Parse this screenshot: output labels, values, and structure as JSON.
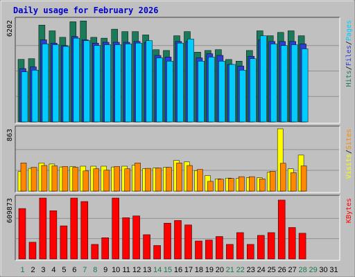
{
  "chart_data": {
    "type": "bar",
    "title": "Daily usage for February 2026",
    "colors": {
      "background": "#c0c0c0",
      "title": "#0000cc",
      "hits": "#1a7a5a",
      "files": "#2b3fd0",
      "pages": "#00ccff",
      "visits": "#ffff00",
      "sites": "#ff8800",
      "kbytes": "#ff0000",
      "weekday_label": "#000000",
      "weekend_label": "#1a7a4a"
    },
    "x_labels": [
      "1",
      "2",
      "3",
      "4",
      "5",
      "6",
      "7",
      "8",
      "9",
      "10",
      "11",
      "12",
      "13",
      "14",
      "15",
      "16",
      "17",
      "18",
      "19",
      "20",
      "21",
      "22",
      "23",
      "24",
      "25",
      "26",
      "27",
      "28",
      "29",
      "30",
      "31"
    ],
    "weekend_days": [
      1,
      7,
      8,
      14,
      15,
      21,
      22,
      28,
      29
    ],
    "panels": [
      {
        "id": "hits-files-pages",
        "ymax_label": "6202",
        "ymax": 6202,
        "right_labels": [
          {
            "text": "Hits",
            "color": "#1a7a5a"
          },
          {
            "text": "Files",
            "color": "#2b3fd0"
          },
          {
            "text": "Pages",
            "color": "#00ccff"
          }
        ],
        "series": [
          {
            "name": "Hits",
            "color": "#1a7a5a",
            "values": [
              3810,
              3850,
              5900,
              5550,
              5150,
              6100,
              6150,
              5150,
              5100,
              5650,
              5500,
              5500,
              5300,
              4400,
              4350,
              5250,
              5500,
              4250,
              4350,
              4400,
              3800,
              3700,
              4350,
              5550,
              5250,
              5450,
              5550,
              5250
            ]
          },
          {
            "name": "Files",
            "color": "#2b3fd0",
            "values": [
              3250,
              3350,
              5000,
              4800,
              4650,
              5200,
              5000,
              4800,
              4850,
              4850,
              4850,
              4900,
              4850,
              4050,
              3950,
              4900,
              4900,
              3900,
              4150,
              4050,
              3500,
              3400,
              4000,
              5000,
              4900,
              4900,
              4900,
              4750
            ]
          },
          {
            "name": "Pages",
            "color": "#00ccff",
            "values": [
              3050,
              3150,
              4750,
              4700,
              4600,
              5100,
              4950,
              4650,
              4700,
              4700,
              4750,
              4800,
              4950,
              3900,
              3700,
              4800,
              5050,
              3700,
              3950,
              3700,
              3500,
              3150,
              3850,
              5250,
              4750,
              4650,
              4700,
              4450
            ]
          }
        ]
      },
      {
        "id": "visits-sites",
        "ymax_label": "863",
        "ymax": 863,
        "right_labels": [
          {
            "text": "Visits",
            "color": "#ffff00"
          },
          {
            "text": "Sites",
            "color": "#ff8800"
          }
        ],
        "series": [
          {
            "name": "Visits",
            "color": "#ffff00",
            "values": [
              270,
              315,
              390,
              375,
              335,
              340,
              345,
              345,
              345,
              335,
              345,
              360,
              310,
              320,
              330,
              425,
              405,
              285,
              215,
              170,
              180,
              175,
              185,
              185,
              260,
              863,
              310,
              500
            ]
          },
          {
            "name": "Sites",
            "color": "#ff8800",
            "values": [
              390,
              330,
              355,
              350,
              340,
              330,
              280,
              310,
              290,
              340,
              310,
              390,
              315,
              320,
              330,
              390,
              355,
              300,
              135,
              165,
              175,
              200,
              200,
              170,
              275,
              385,
              255,
              350
            ]
          }
        ]
      },
      {
        "id": "kbytes",
        "ymax_label": "609873",
        "ymax": 609873,
        "right_labels": [
          {
            "text": "KBytes",
            "color": "#ff0000"
          }
        ],
        "series": [
          {
            "name": "KBytes",
            "color": "#ff0000",
            "values": [
              505000,
              168000,
              609873,
              483000,
              332000,
              609873,
              575000,
              146000,
              213000,
              609873,
              413000,
              431000,
              243000,
              135000,
              359000,
              385000,
              341000,
              180000,
              190000,
              225000,
              146000,
              264000,
              146000,
              236000,
              264000,
              590000,
              315000,
              258000
            ]
          }
        ]
      }
    ]
  }
}
